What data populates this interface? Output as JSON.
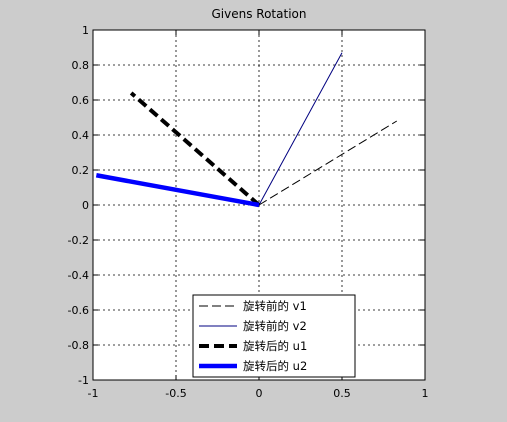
{
  "chart_data": {
    "type": "line",
    "title": "Givens Rotation",
    "xlabel": "",
    "ylabel": "",
    "xlim": [
      -1,
      1
    ],
    "ylim": [
      -1,
      1
    ],
    "grid": true,
    "xticks": [
      -1,
      -0.5,
      0,
      0.5,
      1
    ],
    "xtick_labels": [
      "-1",
      "-0.5",
      "0",
      "0.5",
      "1"
    ],
    "yticks": [
      -1,
      -0.8,
      -0.6,
      -0.4,
      -0.2,
      0,
      0.2,
      0.4,
      0.6,
      0.8,
      1
    ],
    "ytick_labels": [
      "-1",
      "-0.8",
      "-0.6",
      "-0.4",
      "-0.2",
      "0",
      "0.2",
      "0.4",
      "0.6",
      "0.8",
      "1"
    ],
    "legend_position": "bottom-center",
    "series": [
      {
        "name": "旋转前的 v1",
        "x": [
          0,
          0.83
        ],
        "y": [
          0,
          0.48
        ],
        "color": "#000000",
        "style": "dashed-thin"
      },
      {
        "name": "旋转前的 v2",
        "x": [
          0,
          0.5
        ],
        "y": [
          0,
          0.87
        ],
        "color": "#000080",
        "style": "solid-thin"
      },
      {
        "name": "旋转后的 u1",
        "x": [
          0,
          -0.77
        ],
        "y": [
          0,
          0.64
        ],
        "color": "#000000",
        "style": "dashed-thick"
      },
      {
        "name": "旋转后的 u2",
        "x": [
          0,
          -0.98
        ],
        "y": [
          0,
          0.17
        ],
        "color": "#0000ff",
        "style": "solid-thick"
      }
    ]
  }
}
